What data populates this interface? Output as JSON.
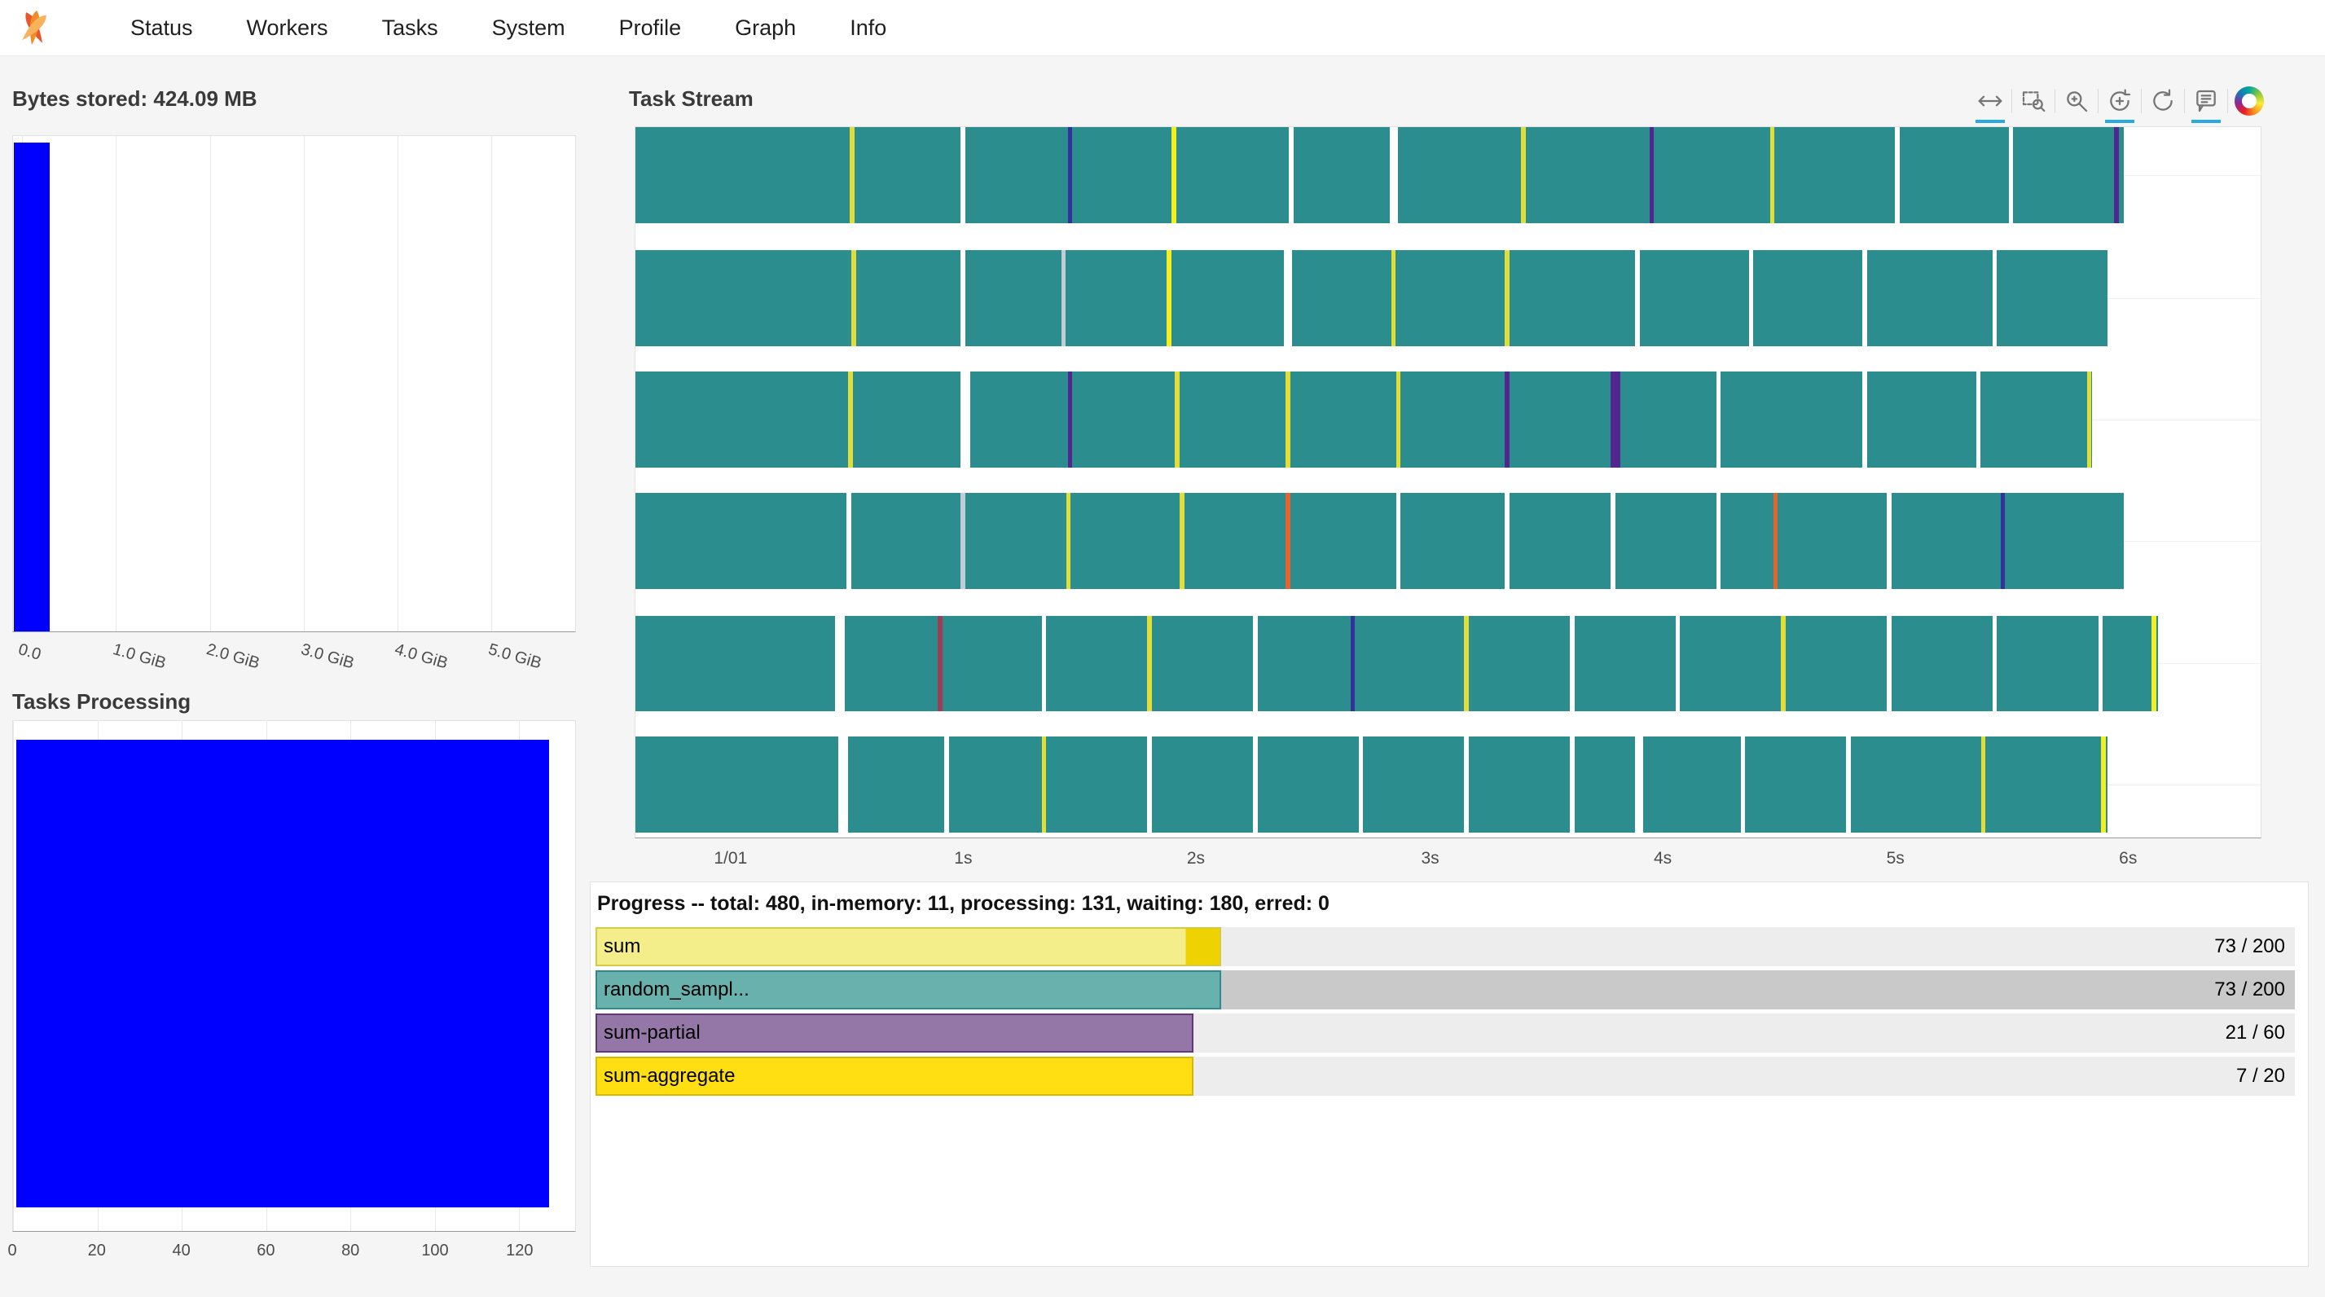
{
  "navbar": {
    "items": [
      "Status",
      "Workers",
      "Tasks",
      "System",
      "Profile",
      "Graph",
      "Info"
    ]
  },
  "colors": {
    "bar_blue": "#0000ff",
    "stream_teal": "#2b8d8d",
    "toolbar_active": "#26aae1"
  },
  "bytes_stored": {
    "title": "Bytes stored: 424.09 MB",
    "chart_data": {
      "type": "bar",
      "xlabel_ticks": [
        "0.0",
        "1.0 GiB",
        "2.0 GiB",
        "3.0 GiB",
        "4.0 GiB",
        "5.0 GiB"
      ],
      "ticks": [
        {
          "label": "0.0",
          "f": 0.016
        },
        {
          "label": "1.0 GiB",
          "f": 0.183
        },
        {
          "label": "2.0 GiB",
          "f": 0.35
        },
        {
          "label": "3.0 GiB",
          "f": 0.517
        },
        {
          "label": "4.0 GiB",
          "f": 0.684
        },
        {
          "label": "5.0 GiB",
          "f": 0.85
        }
      ],
      "bar_fraction": 0.064,
      "bar_color": "#0000ff",
      "value": "424.09 MB",
      "xlim": [
        "0.0",
        "5.0 GiB"
      ]
    }
  },
  "tasks_processing": {
    "title": "Tasks Processing",
    "chart_data": {
      "type": "bar",
      "ticks": [
        {
          "label": "0",
          "f": 0.0
        },
        {
          "label": "20",
          "f": 0.15
        },
        {
          "label": "40",
          "f": 0.3
        },
        {
          "label": "60",
          "f": 0.45
        },
        {
          "label": "80",
          "f": 0.6
        },
        {
          "label": "100",
          "f": 0.75
        },
        {
          "label": "120",
          "f": 0.9
        }
      ],
      "rect": {
        "left": 0.006,
        "width": 0.948,
        "top": 0.036,
        "height": 0.918
      },
      "bar_color": "#0000ff",
      "xlim": [
        0,
        130
      ]
    }
  },
  "task_stream": {
    "title": "Task Stream",
    "palette": {
      "base": "#2b8d8d",
      "w": "#ffffff",
      "y": "#e3dd3a",
      "Y": "#f6ef20",
      "p": "#53258e",
      "n": "#32329a",
      "o": "#e4632e",
      "m": "#a03c53",
      "s": "#c2ccd6"
    },
    "row_tops": [
      0.0,
      0.173,
      0.344,
      0.515,
      0.6875,
      0.858
    ],
    "row_height": 0.135,
    "hgrid": [
      0.068,
      0.241,
      0.412,
      0.583,
      0.755,
      0.926
    ],
    "ticks": [
      {
        "label": "1/01",
        "f": 0.059
      },
      {
        "label": "1s",
        "f": 0.202
      },
      {
        "label": "2s",
        "f": 0.345
      },
      {
        "label": "3s",
        "f": 0.489
      },
      {
        "label": "4s",
        "f": 0.632
      },
      {
        "label": "5s",
        "f": 0.775
      },
      {
        "label": "6s",
        "f": 0.918
      }
    ],
    "rows": [
      {
        "end": 0.916,
        "marks": [
          [
            0.132,
            "y"
          ],
          [
            0.2,
            "w"
          ],
          [
            0.266,
            "n"
          ],
          [
            0.33,
            "Y"
          ],
          [
            0.402,
            "w"
          ],
          [
            0.464,
            "w",
            0.005
          ],
          [
            0.545,
            "y"
          ],
          [
            0.624,
            "p"
          ],
          [
            0.698,
            "y"
          ],
          [
            0.775,
            "w"
          ],
          [
            0.845,
            "w"
          ],
          [
            0.91,
            "p"
          ]
        ]
      },
      {
        "end": 0.906,
        "marks": [
          [
            0.133,
            "y"
          ],
          [
            0.2,
            "w"
          ],
          [
            0.262,
            "s"
          ],
          [
            0.327,
            "Y"
          ],
          [
            0.399,
            "w",
            0.005
          ],
          [
            0.465,
            "y"
          ],
          [
            0.535,
            "y"
          ],
          [
            0.615,
            "w"
          ],
          [
            0.685,
            "w"
          ],
          [
            0.755,
            "w"
          ],
          [
            0.835,
            "w"
          ]
        ]
      },
      {
        "end": 0.896,
        "marks": [
          [
            0.131,
            "y"
          ],
          [
            0.2,
            "w",
            0.006
          ],
          [
            0.266,
            "p"
          ],
          [
            0.332,
            "y"
          ],
          [
            0.4,
            "y"
          ],
          [
            0.468,
            "y"
          ],
          [
            0.535,
            "p"
          ],
          [
            0.6,
            "p",
            0.006
          ],
          [
            0.665,
            "w"
          ],
          [
            0.755,
            "w"
          ],
          [
            0.825,
            "w"
          ],
          [
            0.893,
            "y"
          ]
        ]
      },
      {
        "end": 0.916,
        "marks": [
          [
            0.13,
            "w"
          ],
          [
            0.2,
            "s"
          ],
          [
            0.265,
            "y"
          ],
          [
            0.335,
            "y"
          ],
          [
            0.4,
            "o"
          ],
          [
            0.468,
            "w"
          ],
          [
            0.535,
            "w"
          ],
          [
            0.6,
            "w"
          ],
          [
            0.665,
            "w"
          ],
          [
            0.7,
            "o"
          ],
          [
            0.77,
            "w"
          ],
          [
            0.84,
            "n"
          ]
        ]
      },
      {
        "end": 0.937,
        "marks": [
          [
            0.123,
            "w",
            0.006
          ],
          [
            0.186,
            "m"
          ],
          [
            0.25,
            "w"
          ],
          [
            0.315,
            "y"
          ],
          [
            0.38,
            "w"
          ],
          [
            0.44,
            "n"
          ],
          [
            0.51,
            "y"
          ],
          [
            0.575,
            "w"
          ],
          [
            0.64,
            "w"
          ],
          [
            0.705,
            "y"
          ],
          [
            0.77,
            "w"
          ],
          [
            0.835,
            "w"
          ],
          [
            0.9,
            "w"
          ],
          [
            0.933,
            "Y"
          ]
        ]
      },
      {
        "end": 0.906,
        "marks": [
          [
            0.125,
            "w",
            0.006
          ],
          [
            0.19,
            "w"
          ],
          [
            0.25,
            "y"
          ],
          [
            0.315,
            "w"
          ],
          [
            0.38,
            "w"
          ],
          [
            0.445,
            "w"
          ],
          [
            0.51,
            "w"
          ],
          [
            0.575,
            "w"
          ],
          [
            0.615,
            "w",
            0.005
          ],
          [
            0.68,
            "w"
          ],
          [
            0.745,
            "w"
          ],
          [
            0.828,
            "y"
          ],
          [
            0.902,
            "Y"
          ]
        ]
      }
    ],
    "toolbar": [
      {
        "name": "pan-tool",
        "active": true
      },
      {
        "name": "box-zoom-tool",
        "active": false
      },
      {
        "name": "zoom-in-tool",
        "active": false
      },
      {
        "name": "wheel-zoom-tool",
        "active": true
      },
      {
        "name": "reset-tool",
        "active": false
      },
      {
        "name": "hover-tool",
        "active": true
      },
      {
        "name": "bokeh-logo",
        "active": false
      }
    ]
  },
  "progress": {
    "title": "Progress -- total: 480, in-memory: 11, processing: 131, waiting: 180, erred: 0",
    "bars": [
      {
        "label": "sum",
        "count": "73 / 200",
        "bg": "#ededed",
        "fill": 0.368,
        "color": "#f3ee8a",
        "border": "#d5ca45",
        "tip": 0.054,
        "tip_color": "#eed202"
      },
      {
        "label": "random_sampl...",
        "count": "73 / 200",
        "bg": "#c9c9c9",
        "fill": 0.368,
        "color": "#68b1ad",
        "border": "#2e8b8b"
      },
      {
        "label": "sum-partial",
        "count": "21 / 60",
        "bg": "#ededed",
        "fill": 0.352,
        "color": "#9577a7",
        "border": "#5d3b76"
      },
      {
        "label": "sum-aggregate",
        "count": "7 / 20",
        "bg": "#ededed",
        "fill": 0.352,
        "color": "#ffdf12",
        "border": "#d6b900"
      }
    ]
  }
}
